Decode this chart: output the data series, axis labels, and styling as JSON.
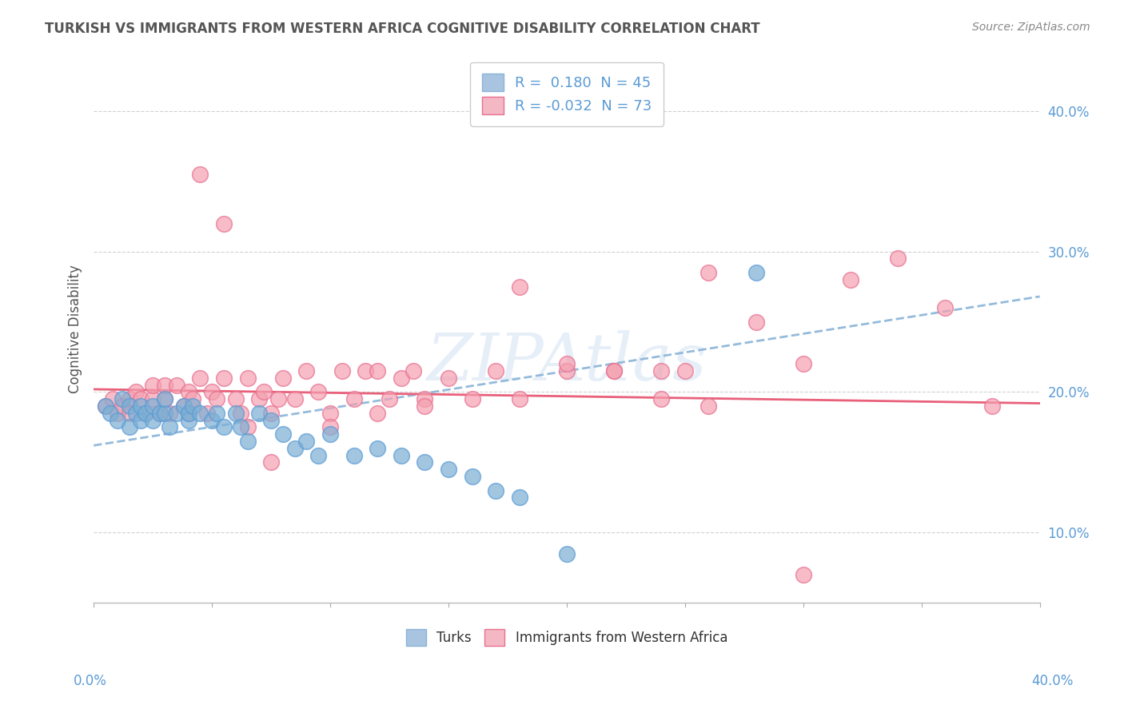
{
  "title": "TURKISH VS IMMIGRANTS FROM WESTERN AFRICA COGNITIVE DISABILITY CORRELATION CHART",
  "source": "Source: ZipAtlas.com",
  "ylabel": "Cognitive Disability",
  "yticks": [
    0.1,
    0.2,
    0.3,
    0.4
  ],
  "ytick_labels": [
    "10.0%",
    "20.0%",
    "30.0%",
    "40.0%"
  ],
  "xlim": [
    0.0,
    0.4
  ],
  "ylim": [
    0.05,
    0.44
  ],
  "legend_line1": "R =  0.180  N = 45",
  "legend_line2": "R = -0.032  N = 73",
  "turks_x": [
    0.005,
    0.007,
    0.01,
    0.012,
    0.015,
    0.015,
    0.018,
    0.02,
    0.02,
    0.022,
    0.025,
    0.025,
    0.028,
    0.03,
    0.03,
    0.032,
    0.035,
    0.038,
    0.04,
    0.04,
    0.042,
    0.045,
    0.05,
    0.052,
    0.055,
    0.06,
    0.062,
    0.065,
    0.07,
    0.075,
    0.08,
    0.085,
    0.09,
    0.095,
    0.1,
    0.11,
    0.12,
    0.13,
    0.14,
    0.15,
    0.16,
    0.17,
    0.18,
    0.2,
    0.28
  ],
  "turks_y": [
    0.19,
    0.185,
    0.18,
    0.195,
    0.19,
    0.175,
    0.185,
    0.18,
    0.19,
    0.185,
    0.18,
    0.19,
    0.185,
    0.185,
    0.195,
    0.175,
    0.185,
    0.19,
    0.18,
    0.185,
    0.19,
    0.185,
    0.18,
    0.185,
    0.175,
    0.185,
    0.175,
    0.165,
    0.185,
    0.18,
    0.17,
    0.16,
    0.165,
    0.155,
    0.17,
    0.155,
    0.16,
    0.155,
    0.15,
    0.145,
    0.14,
    0.13,
    0.125,
    0.085,
    0.285
  ],
  "immigrants_x": [
    0.005,
    0.008,
    0.01,
    0.012,
    0.015,
    0.015,
    0.018,
    0.02,
    0.022,
    0.025,
    0.025,
    0.028,
    0.03,
    0.03,
    0.032,
    0.035,
    0.038,
    0.04,
    0.04,
    0.042,
    0.045,
    0.048,
    0.05,
    0.052,
    0.055,
    0.06,
    0.062,
    0.065,
    0.07,
    0.072,
    0.075,
    0.078,
    0.08,
    0.085,
    0.09,
    0.095,
    0.1,
    0.105,
    0.11,
    0.115,
    0.12,
    0.125,
    0.13,
    0.135,
    0.14,
    0.15,
    0.16,
    0.17,
    0.18,
    0.2,
    0.22,
    0.24,
    0.25,
    0.26,
    0.28,
    0.3,
    0.32,
    0.34,
    0.36,
    0.38,
    0.045,
    0.055,
    0.065,
    0.075,
    0.1,
    0.12,
    0.14,
    0.18,
    0.2,
    0.22,
    0.24,
    0.26,
    0.3
  ],
  "immigrants_y": [
    0.19,
    0.195,
    0.185,
    0.19,
    0.195,
    0.185,
    0.2,
    0.195,
    0.185,
    0.195,
    0.205,
    0.185,
    0.195,
    0.205,
    0.185,
    0.205,
    0.19,
    0.2,
    0.185,
    0.195,
    0.21,
    0.185,
    0.2,
    0.195,
    0.21,
    0.195,
    0.185,
    0.21,
    0.195,
    0.2,
    0.185,
    0.195,
    0.21,
    0.195,
    0.215,
    0.2,
    0.185,
    0.215,
    0.195,
    0.215,
    0.215,
    0.195,
    0.21,
    0.215,
    0.195,
    0.21,
    0.195,
    0.215,
    0.195,
    0.215,
    0.215,
    0.195,
    0.215,
    0.19,
    0.25,
    0.22,
    0.28,
    0.295,
    0.26,
    0.19,
    0.355,
    0.32,
    0.175,
    0.15,
    0.175,
    0.185,
    0.19,
    0.275,
    0.22,
    0.215,
    0.215,
    0.285,
    0.07
  ],
  "blue_line_x": [
    0.0,
    0.4
  ],
  "blue_line_y": [
    0.162,
    0.268
  ],
  "pink_line_x": [
    0.0,
    0.4
  ],
  "pink_line_y": [
    0.202,
    0.192
  ],
  "turks_color": "#7bafd4",
  "turks_edge_color": "#5b9bd5",
  "immigrants_color": "#f4a0b0",
  "immigrants_edge_color": "#e87090",
  "blue_line_color": "#8ab4d8",
  "pink_line_color": "#e8607a",
  "watermark": "ZIPAtlas",
  "background_color": "#ffffff",
  "grid_color": "#cccccc",
  "title_color": "#555555",
  "axis_label_color": "#5b9bd5",
  "legend_r_color": "#5b9bd5"
}
